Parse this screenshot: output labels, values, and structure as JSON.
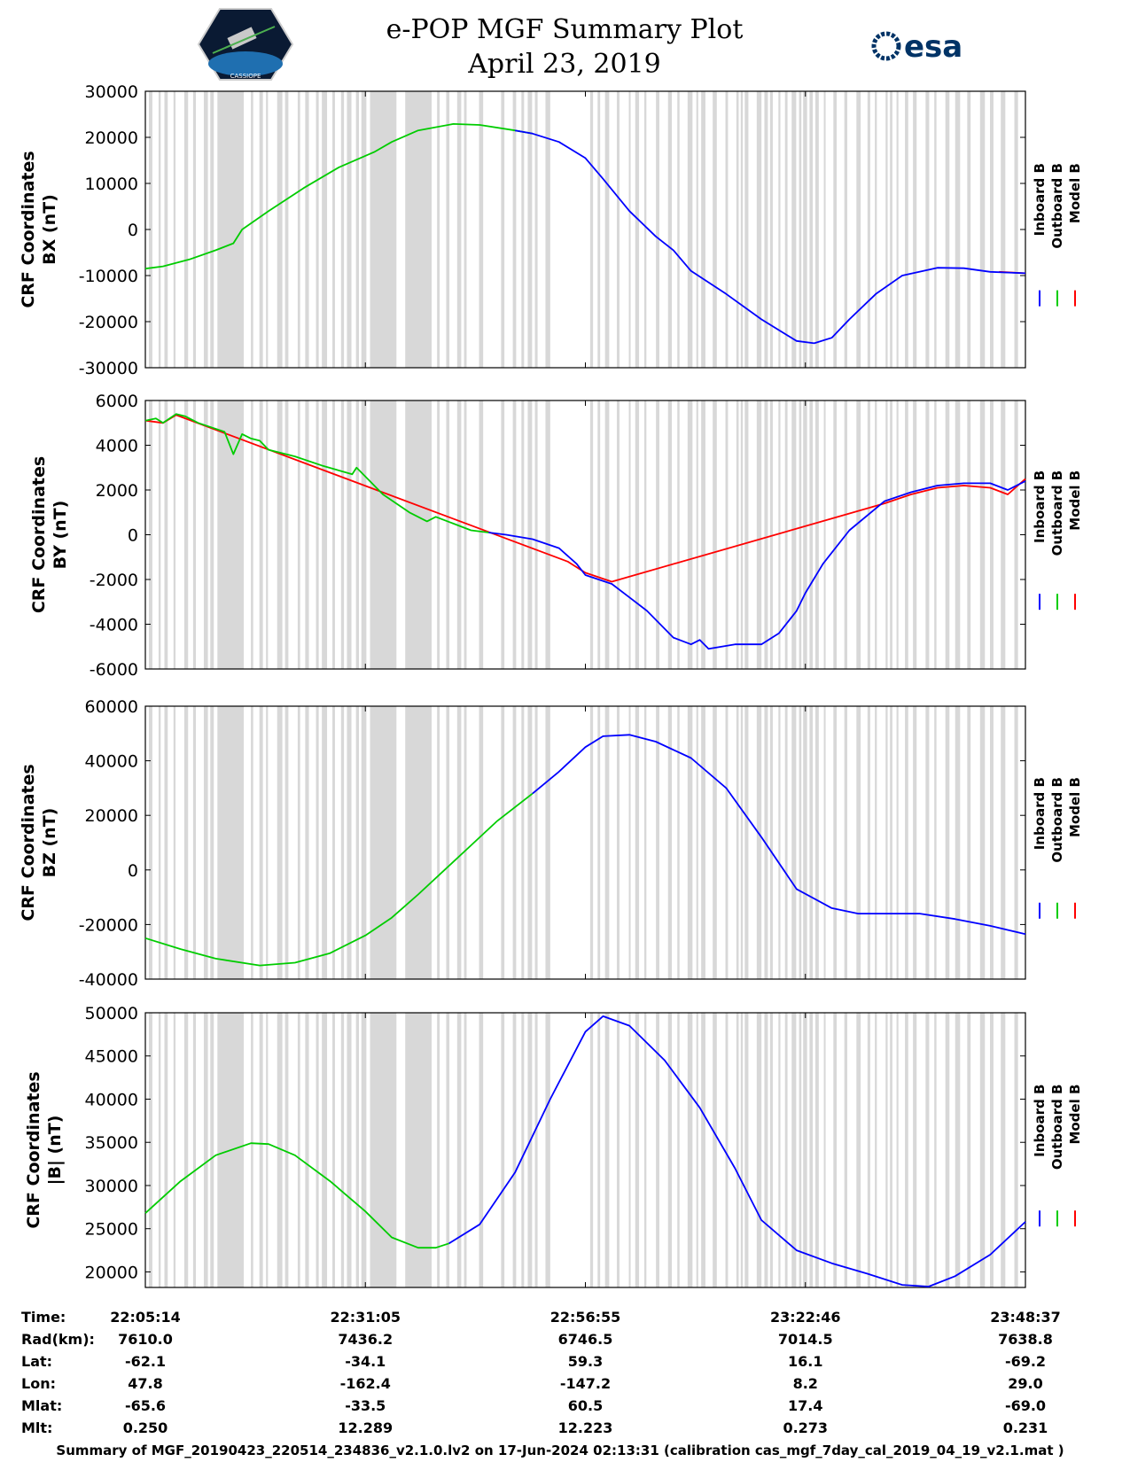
{
  "header": {
    "title_line1": "e-POP MGF Summary Plot",
    "title_line2": "April 23, 2019",
    "right_logo_text": "esa",
    "left_logo_caption": "CASSIOPE"
  },
  "legend": {
    "labels": [
      "Inboard B",
      "Outboard B",
      "Model B"
    ],
    "colors": [
      "#0000ff",
      "#00cc00",
      "#ff0000"
    ]
  },
  "chart_data": [
    {
      "type": "line",
      "id": "bx",
      "ylabel_line1": "CRF Coordinates",
      "ylabel_line2": "BX (nT)",
      "ylim": [
        -30000,
        30000
      ],
      "yticks": [
        30000,
        20000,
        10000,
        0,
        -10000,
        -20000,
        -30000
      ],
      "ytick_labels": [
        "30000",
        "20000",
        "10000",
        "0",
        "-10000",
        "-20000",
        "-30000"
      ],
      "outboard_x": [
        0,
        0.02,
        0.05,
        0.08,
        0.1,
        0.11,
        0.14,
        0.18,
        0.22,
        0.26,
        0.28,
        0.31,
        0.35,
        0.38,
        0.42,
        0.44
      ],
      "outboard_y": [
        -8500,
        -8000,
        -6500,
        -4500,
        -3000,
        0,
        4000,
        9000,
        13500,
        16800,
        19000,
        21500,
        22900,
        22700,
        21500,
        20800
      ],
      "inboard_x": [
        0.42,
        0.44,
        0.47,
        0.5,
        0.52,
        0.55,
        0.58,
        0.6,
        0.62,
        0.66,
        0.7,
        0.74,
        0.76,
        0.78,
        0.8,
        0.83,
        0.86,
        0.9,
        0.93,
        0.96,
        1.0
      ],
      "inboard_y": [
        21500,
        20800,
        19000,
        15500,
        11000,
        4000,
        -1500,
        -4500,
        -9000,
        -14000,
        -19500,
        -24200,
        -24700,
        -23500,
        -19500,
        -14000,
        -10000,
        -8300,
        -8400,
        -9200,
        -9500
      ],
      "model_x": [
        0.97,
        1.0
      ],
      "model_y": [
        -9200,
        -9500
      ]
    },
    {
      "type": "line",
      "id": "by",
      "ylabel_line1": "CRF Coordinates",
      "ylabel_line2": "BY (nT)",
      "ylim": [
        -6000,
        6000
      ],
      "yticks": [
        6000,
        4000,
        2000,
        0,
        -2000,
        -4000,
        -6000
      ],
      "ytick_labels": [
        "6000",
        "4000",
        "2000",
        "0",
        "-2000",
        "-4000",
        "-6000"
      ],
      "outboard_x": [
        0,
        0.012,
        0.02,
        0.035,
        0.045,
        0.06,
        0.075,
        0.09,
        0.1,
        0.11,
        0.12,
        0.13,
        0.14,
        0.17,
        0.2,
        0.235,
        0.24,
        0.25,
        0.27,
        0.3,
        0.32,
        0.33,
        0.35,
        0.37,
        0.39
      ],
      "outboard_y": [
        5100,
        5200,
        5000,
        5400,
        5300,
        5000,
        4800,
        4600,
        3600,
        4500,
        4300,
        4200,
        3800,
        3500,
        3100,
        2700,
        3000,
        2600,
        1800,
        1000,
        600,
        800,
        500,
        200,
        100
      ],
      "inboard_x": [
        0.39,
        0.41,
        0.44,
        0.47,
        0.49,
        0.5,
        0.53,
        0.55,
        0.57,
        0.6,
        0.62,
        0.63,
        0.64,
        0.67,
        0.7,
        0.72,
        0.74,
        0.75,
        0.77,
        0.8,
        0.84,
        0.87,
        0.9,
        0.93,
        0.96,
        0.98,
        1.0
      ],
      "inboard_y": [
        100,
        0,
        -200,
        -600,
        -1300,
        -1800,
        -2200,
        -2800,
        -3400,
        -4600,
        -4900,
        -4700,
        -5100,
        -4900,
        -4900,
        -4400,
        -3400,
        -2600,
        -1300,
        200,
        1500,
        1900,
        2200,
        2300,
        2300,
        2000,
        2400
      ],
      "model_x": [
        0.0,
        0.02,
        0.035,
        0.48,
        0.5,
        0.53,
        0.84,
        0.87,
        0.9,
        0.93,
        0.96,
        0.98,
        1.0
      ],
      "model_y": [
        5100,
        5000,
        5350,
        -1200,
        -1700,
        -2100,
        1400,
        1800,
        2100,
        2200,
        2100,
        1800,
        2500
      ]
    },
    {
      "type": "line",
      "id": "bz",
      "ylabel_line1": "CRF Coordinates",
      "ylabel_line2": "BZ (nT)",
      "ylim": [
        -40000,
        60000
      ],
      "yticks": [
        60000,
        40000,
        20000,
        0,
        -20000,
        -40000
      ],
      "ytick_labels": [
        "60000",
        "40000",
        "20000",
        "0",
        "-20000",
        "-40000"
      ],
      "outboard_x": [
        0,
        0.04,
        0.08,
        0.13,
        0.17,
        0.21,
        0.25,
        0.28,
        0.31,
        0.34,
        0.37,
        0.4,
        0.44
      ],
      "outboard_y": [
        -25000,
        -29000,
        -32500,
        -35000,
        -34000,
        -30500,
        -24000,
        -17500,
        -9000,
        0,
        9000,
        18000,
        28000
      ],
      "inboard_x": [
        0.44,
        0.47,
        0.5,
        0.52,
        0.55,
        0.58,
        0.62,
        0.66,
        0.7,
        0.74,
        0.78,
        0.81,
        0.84,
        0.88,
        0.92,
        0.96,
        1.0
      ],
      "inboard_y": [
        28000,
        36000,
        45000,
        49000,
        49500,
        47000,
        41000,
        30000,
        12000,
        -7000,
        -14000,
        -16000,
        -16000,
        -16000,
        -18000,
        -20500,
        -23500
      ]
    },
    {
      "type": "line",
      "id": "bmag",
      "ylabel_line1": "CRF Coordinates",
      "ylabel_line2": "|B| (nT)",
      "ylim": [
        18200,
        50000
      ],
      "yticks": [
        50000,
        45000,
        40000,
        35000,
        30000,
        25000,
        20000
      ],
      "ytick_labels": [
        "50000",
        "45000",
        "40000",
        "35000",
        "30000",
        "25000",
        "20000"
      ],
      "outboard_x": [
        0,
        0.04,
        0.08,
        0.12,
        0.14,
        0.17,
        0.21,
        0.25,
        0.28,
        0.31,
        0.33,
        0.345
      ],
      "outboard_y": [
        26800,
        30500,
        33500,
        34900,
        34800,
        33500,
        30500,
        27000,
        24000,
        22800,
        22800,
        23300
      ],
      "inboard_x": [
        0.345,
        0.38,
        0.42,
        0.46,
        0.5,
        0.52,
        0.55,
        0.59,
        0.63,
        0.67,
        0.7,
        0.74,
        0.78,
        0.82,
        0.86,
        0.89,
        0.92,
        0.96,
        1.0
      ],
      "inboard_y": [
        23300,
        25500,
        31500,
        40000,
        47800,
        49600,
        48500,
        44500,
        39000,
        32000,
        26000,
        22500,
        21000,
        19800,
        18500,
        18300,
        19500,
        22000,
        25800
      ]
    }
  ],
  "info_table": {
    "row_labels": [
      "Time:",
      "Rad(km):",
      "Lat:",
      "Lon:",
      "Mlat:",
      "Mlt:"
    ],
    "columns": [
      [
        "22:05:14",
        "7610.0",
        "-62.1",
        "47.8",
        "-65.6",
        "0.250"
      ],
      [
        "22:31:05",
        "7436.2",
        "-34.1",
        "-162.4",
        "-33.5",
        "12.289"
      ],
      [
        "22:56:55",
        "6746.5",
        "59.3",
        "-147.2",
        "60.5",
        "12.223"
      ],
      [
        "23:22:46",
        "7014.5",
        "16.1",
        "8.2",
        "17.4",
        "0.273"
      ],
      [
        "23:48:37",
        "7638.8",
        "-69.2",
        "29.0",
        "-69.0",
        "0.231"
      ]
    ]
  },
  "footer": "Summary of MGF_20190423_220514_234836_v2.1.0.lv2 on 17-Jun-2024 02:13:31 (calibration cas_mgf_7day_cal_2019_04_19_v2.1.mat )"
}
